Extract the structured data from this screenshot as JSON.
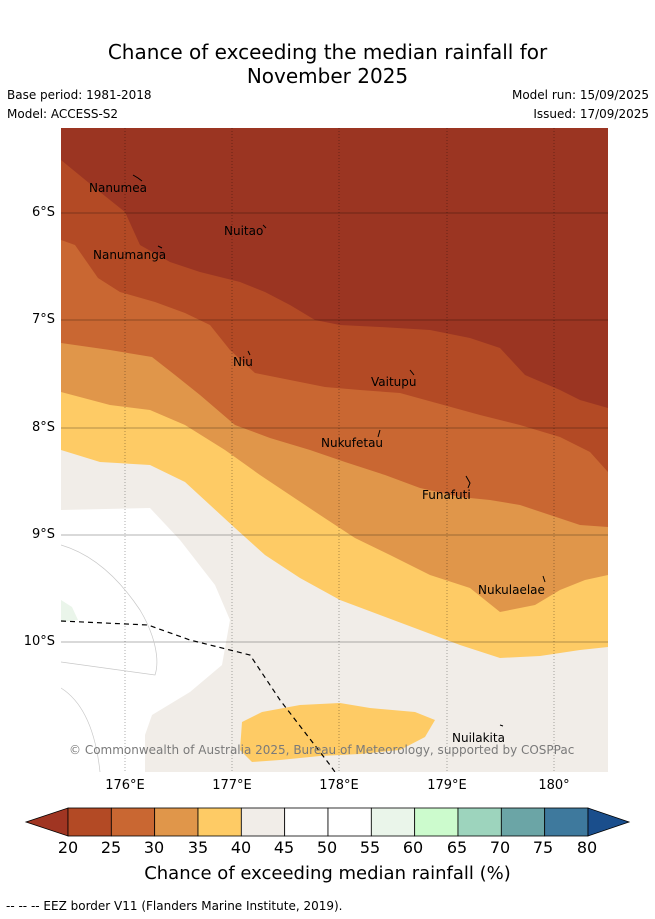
{
  "header": {
    "title_line1": "Chance of exceeding the median rainfall for",
    "title_line2": "November 2025",
    "base_period": "Base period: 1981-2018",
    "model": "Model: ACCESS-S2",
    "model_run": "Model run: 15/09/2025",
    "issued": "Issued: 17/09/2025"
  },
  "map": {
    "lat_ticks": [
      "6°S",
      "7°S",
      "8°S",
      "9°S",
      "10°S"
    ],
    "lon_ticks": [
      "176°E",
      "177°E",
      "178°E",
      "179°E",
      "180°"
    ],
    "places": [
      {
        "name": "Nanumea",
        "lon": 175.9,
        "lat": -5.7
      },
      {
        "name": "Nuitao",
        "lon": 177.3,
        "lat": -6.1
      },
      {
        "name": "Nanumanga",
        "lon": 176.3,
        "lat": -6.3
      },
      {
        "name": "Niu",
        "lon": 177.2,
        "lat": -7.3
      },
      {
        "name": "Vaitupu",
        "lon": 178.7,
        "lat": -7.5
      },
      {
        "name": "Nukufetau",
        "lon": 178.4,
        "lat": -8.0
      },
      {
        "name": "Funafuti",
        "lon": 179.2,
        "lat": -8.5
      },
      {
        "name": "Nukulaelae",
        "lon": 179.85,
        "lat": -9.4
      },
      {
        "name": "Nuilakita",
        "lon": 179.5,
        "lat": -10.8
      }
    ],
    "copyright": "© Commonwealth of Australia 2025, Bureau of Meteorology, supported by COSPPac",
    "eez_note": "-- -- -- EEZ border V11 (Flanders Marine Institute, 2019)."
  },
  "legend": {
    "ticks": [
      "20",
      "25",
      "30",
      "35",
      "40",
      "45",
      "50",
      "55",
      "60",
      "65",
      "70",
      "75",
      "80"
    ],
    "label": "Chance of exceeding median rainfall (%)",
    "colors": [
      "#a03522",
      "#b34a25",
      "#c96732",
      "#e0964a",
      "#fecb65",
      "#f1ede8",
      "#ffffff",
      "#ffffff",
      "#eaf5ea",
      "#ccfbcd",
      "#9dd4bd",
      "#6ba5a6",
      "#3e799d",
      "#1a4e8c"
    ]
  }
}
